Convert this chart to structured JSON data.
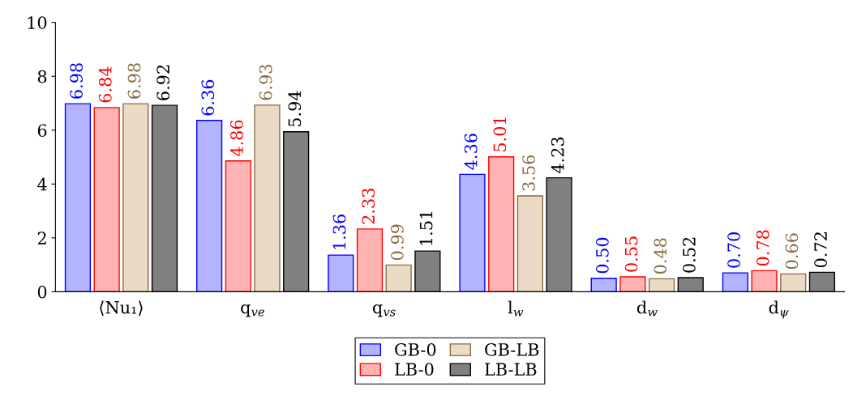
{
  "chart_data": {
    "type": "bar",
    "categories": [
      "⟨Nu₁⟩",
      "q$_{ve}$",
      "q$_{vs}$",
      "l$_{w}$",
      "d$_{w}$",
      "d$_{ψ}$"
    ],
    "series": [
      {
        "name": "GB-0",
        "color": "#b3b3ff",
        "values": [
          6.98,
          6.36,
          1.36,
          4.36,
          0.5,
          0.7
        ],
        "value_labels": [
          "6.98",
          "6.36",
          "1.36",
          "4.36",
          "0.50",
          "0.70"
        ]
      },
      {
        "name": "LB-0",
        "color": "#ffb3b3",
        "values": [
          6.84,
          4.86,
          2.33,
          5.01,
          0.55,
          0.78
        ],
        "value_labels": [
          "6.84",
          "4.86",
          "2.33",
          "5.01",
          "0.55",
          "0.78"
        ]
      },
      {
        "name": "GB-LB",
        "color": "#ebdac4",
        "values": [
          6.98,
          6.93,
          0.99,
          3.56,
          0.48,
          0.66
        ],
        "value_labels": [
          "6.98",
          "6.93",
          "0.99",
          "3.56",
          "0.48",
          "0.66"
        ]
      },
      {
        "name": "LB-LB",
        "color": "#808080",
        "values": [
          6.92,
          5.94,
          1.51,
          4.23,
          0.52,
          0.72
        ],
        "value_labels": [
          "6.92",
          "5.94",
          "1.51",
          "4.23",
          "0.52",
          "0.72"
        ]
      }
    ],
    "ylim": [
      0,
      10
    ],
    "yticks": [
      0,
      2,
      4,
      6,
      8,
      10
    ],
    "grid": false,
    "legend": "bottom"
  }
}
